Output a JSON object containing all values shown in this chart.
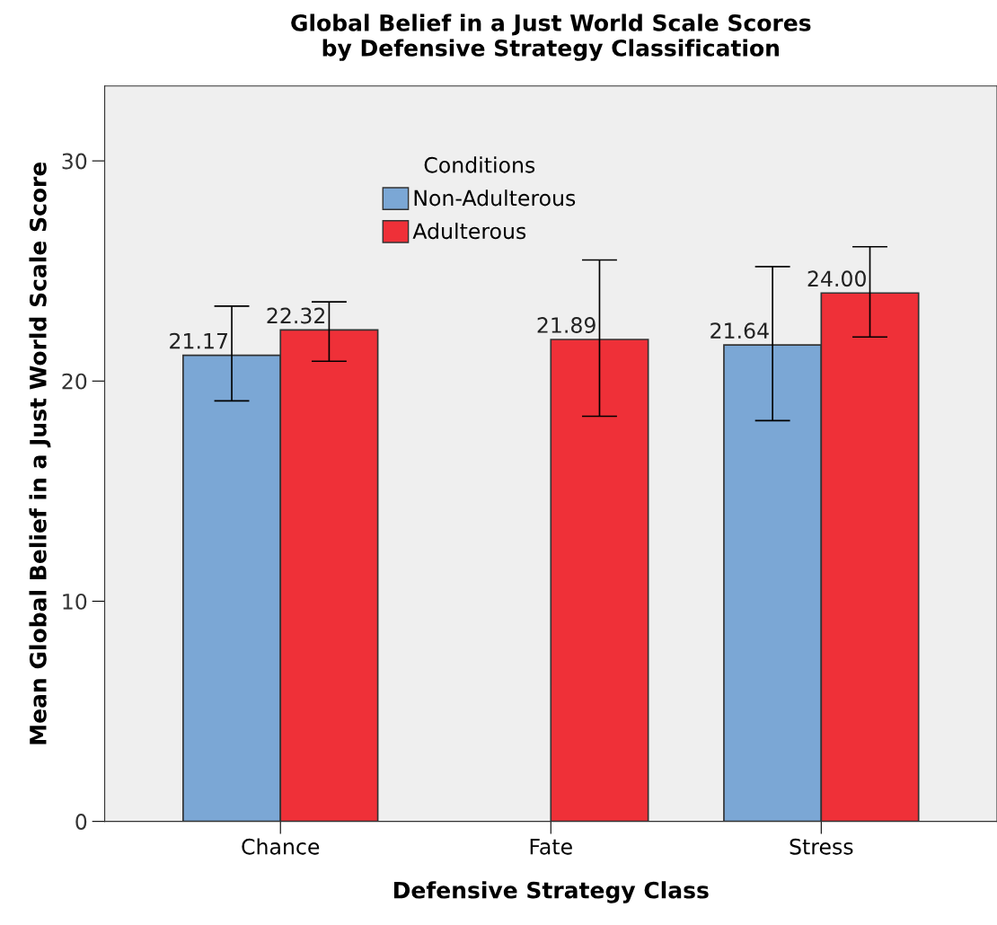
{
  "chart_data": {
    "type": "bar",
    "title": "Global Belief in a Just World Scale Scores\nby Defensive Strategy Classification",
    "xlabel": "Defensive Strategy Class",
    "ylabel": "Mean Global Belief in a Just World Scale Score",
    "legend_title": "Conditions",
    "categories": [
      "Chance",
      "Fate",
      "Stress"
    ],
    "series": [
      {
        "name": "Non-Adulterous",
        "color": "#7ba7d5",
        "values": [
          21.17,
          null,
          21.64
        ],
        "value_labels": [
          "21.17",
          null,
          "21.64"
        ],
        "errors": [
          [
            19.1,
            23.4
          ],
          null,
          [
            18.2,
            25.2
          ]
        ]
      },
      {
        "name": "Adulterous",
        "color": "#ef3038",
        "values": [
          22.32,
          21.89,
          24.0
        ],
        "value_labels": [
          "22.32",
          "21.89",
          "24.00"
        ],
        "errors": [
          [
            20.9,
            23.6
          ],
          [
            18.4,
            25.5
          ],
          [
            22.0,
            26.1
          ]
        ]
      }
    ],
    "ylim": [
      0,
      33.4
    ],
    "yticks": [
      0,
      10,
      20,
      30
    ],
    "legend": "top",
    "grid": false
  }
}
